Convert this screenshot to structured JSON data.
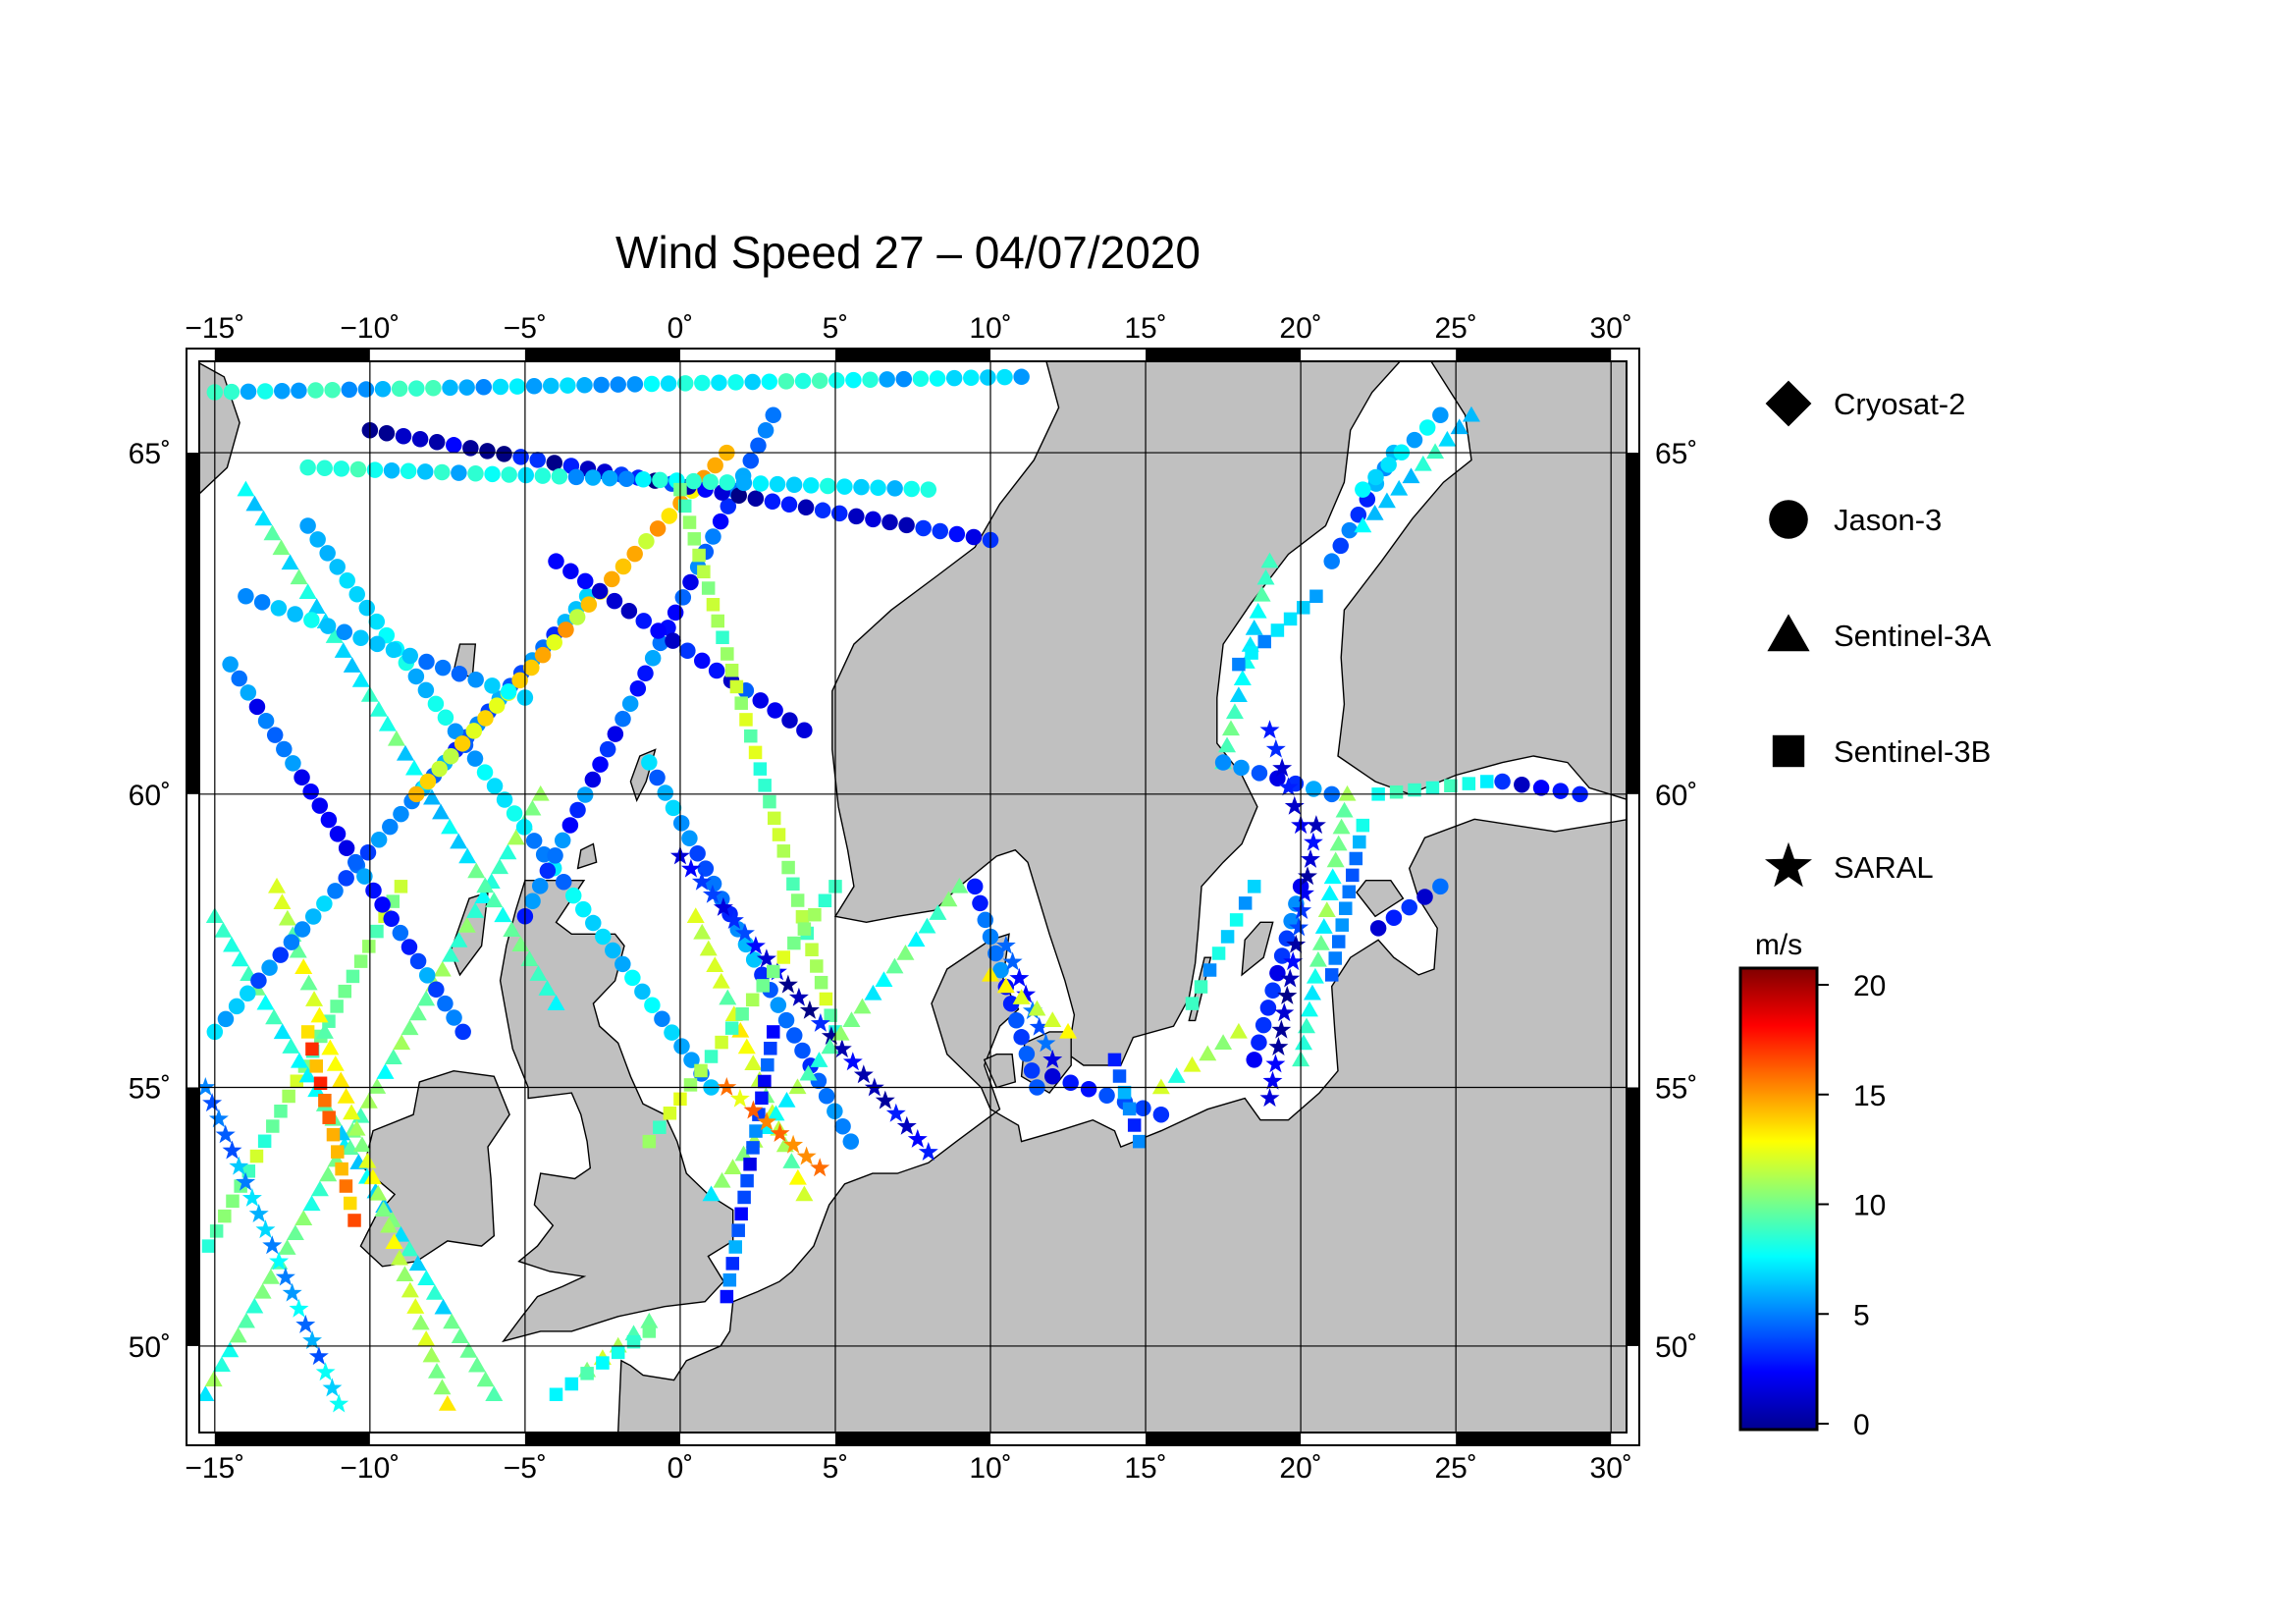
{
  "title": "Wind Speed 27 – 04/07/2020",
  "map": {
    "lon_range": [
      -15.5,
      30.5
    ],
    "lat_range": [
      48.2,
      66.2
    ],
    "lon_ticks": [
      {
        "value": -15,
        "label": "−15˚"
      },
      {
        "value": -10,
        "label": "−10˚"
      },
      {
        "value": -5,
        "label": "−5˚"
      },
      {
        "value": 0,
        "label": "0˚"
      },
      {
        "value": 5,
        "label": "5˚"
      },
      {
        "value": 10,
        "label": "10˚"
      },
      {
        "value": 15,
        "label": "15˚"
      },
      {
        "value": 20,
        "label": "20˚"
      },
      {
        "value": 25,
        "label": "25˚"
      },
      {
        "value": 30,
        "label": "30˚"
      }
    ],
    "lat_ticks": [
      {
        "value": 50,
        "label": "50˚"
      },
      {
        "value": 55,
        "label": "55˚"
      },
      {
        "value": 60,
        "label": "60˚"
      },
      {
        "value": 65,
        "label": "65˚"
      }
    ],
    "land_color": "#c0c0c0",
    "sea_color": "#ffffff"
  },
  "legend": [
    {
      "symbol": "diamond",
      "label": "Cryosat-2"
    },
    {
      "symbol": "circle",
      "label": "Jason-3"
    },
    {
      "symbol": "triangle",
      "label": "Sentinel-3A"
    },
    {
      "symbol": "square",
      "label": "Sentinel-3B"
    },
    {
      "symbol": "star",
      "label": "SARAL"
    }
  ],
  "colorbar": {
    "unit": "m/s",
    "min": 0,
    "max": 20,
    "ticks": [
      {
        "value": 0,
        "label": "0"
      },
      {
        "value": 5,
        "label": "5"
      },
      {
        "value": 10,
        "label": "10"
      },
      {
        "value": 15,
        "label": "15"
      },
      {
        "value": 20,
        "label": "20"
      }
    ],
    "colormap": "jet"
  },
  "tracks": [
    {
      "sat": "Sentinel-3A",
      "from": [
        -15.3,
        49.0
      ],
      "to": [
        -4.5,
        60.0
      ],
      "speed": 9
    },
    {
      "sat": "Sentinel-3B",
      "from": [
        -15.2,
        52.0
      ],
      "to": [
        -9.0,
        58.5
      ],
      "speed": 10
    },
    {
      "sat": "Sentinel-3A",
      "from": [
        -15.0,
        58.0
      ],
      "to": [
        -6.0,
        49.0
      ],
      "speed": 8
    },
    {
      "sat": "SARAL",
      "from": [
        -15.3,
        55.0
      ],
      "to": [
        -11.0,
        48.8
      ],
      "speed": 6
    },
    {
      "sat": "Sentinel-3B",
      "from": [
        -12.0,
        56.0
      ],
      "to": [
        -10.5,
        52.5
      ],
      "speed": 15
    },
    {
      "sat": "Sentinel-3A",
      "from": [
        -13.0,
        58.5
      ],
      "to": [
        -7.5,
        48.8
      ],
      "speed": 11
    },
    {
      "sat": "Jason-3",
      "from": [
        -15.0,
        56.0
      ],
      "to": [
        -3.0,
        63.0
      ],
      "speed": 5
    },
    {
      "sat": "Jason-3",
      "from": [
        -14.5,
        62.0
      ],
      "to": [
        -7.0,
        56.0
      ],
      "speed": 4
    },
    {
      "sat": "Sentinel-3A",
      "from": [
        -14.0,
        64.5
      ],
      "to": [
        -4.0,
        56.5
      ],
      "speed": 8
    },
    {
      "sat": "Jason-3",
      "from": [
        -12.0,
        64.0
      ],
      "to": [
        1.0,
        55.0
      ],
      "speed": 6
    },
    {
      "sat": "Jason-3",
      "from": [
        -5.0,
        58.0
      ],
      "to": [
        3.0,
        65.5
      ],
      "speed": 4
    },
    {
      "sat": "Jason-3",
      "from": [
        -8.5,
        60.0
      ],
      "to": [
        1.5,
        65.0
      ],
      "speed": 13
    },
    {
      "sat": "Jason-3",
      "from": [
        -15.0,
        65.8
      ],
      "to": [
        11.0,
        66.0
      ],
      "speed": 7
    },
    {
      "sat": "Jason-3",
      "from": [
        -10.0,
        65.3
      ],
      "to": [
        10.0,
        63.8
      ],
      "speed": 2
    },
    {
      "sat": "Jason-3",
      "from": [
        -12.0,
        64.8
      ],
      "to": [
        8.0,
        64.5
      ],
      "speed": 7
    },
    {
      "sat": "Jason-3",
      "from": [
        -14.0,
        63.0
      ],
      "to": [
        -5.0,
        61.5
      ],
      "speed": 6
    },
    {
      "sat": "Jason-3",
      "from": [
        -4.0,
        63.5
      ],
      "to": [
        4.0,
        61.0
      ],
      "speed": 3
    },
    {
      "sat": "Sentinel-3B",
      "from": [
        0.0,
        64.5
      ],
      "to": [
        5.0,
        56.0
      ],
      "speed": 10
    },
    {
      "sat": "Sentinel-3A",
      "from": [
        0.5,
        58.0
      ],
      "to": [
        4.0,
        53.0
      ],
      "speed": 11
    },
    {
      "sat": "Jason-3",
      "from": [
        -1.0,
        60.5
      ],
      "to": [
        5.5,
        54.0
      ],
      "speed": 5
    },
    {
      "sat": "SARAL",
      "from": [
        0.0,
        59.0
      ],
      "to": [
        8.0,
        53.8
      ],
      "speed": 2
    },
    {
      "sat": "Sentinel-3A",
      "from": [
        1.0,
        53.0
      ],
      "to": [
        9.0,
        58.5
      ],
      "speed": 9
    },
    {
      "sat": "Sentinel-3B",
      "from": [
        -1.0,
        54.0
      ],
      "to": [
        5.0,
        58.5
      ],
      "speed": 10
    },
    {
      "sat": "Sentinel-3B",
      "from": [
        1.5,
        51.0
      ],
      "to": [
        3.0,
        56.0
      ],
      "speed": 4
    },
    {
      "sat": "SARAL",
      "from": [
        1.5,
        55.0
      ],
      "to": [
        4.5,
        53.5
      ],
      "speed": 14
    },
    {
      "sat": "Sentinel-3A",
      "from": [
        -3.0,
        49.5
      ],
      "to": [
        -1.0,
        50.5
      ],
      "speed": 11
    },
    {
      "sat": "Sentinel-3B",
      "from": [
        -4.0,
        49.0
      ],
      "to": [
        -1.0,
        50.3
      ],
      "speed": 9
    },
    {
      "sat": "Jason-3",
      "from": [
        9.5,
        58.5
      ],
      "to": [
        11.5,
        55.0
      ],
      "speed": 4
    },
    {
      "sat": "SARAL",
      "from": [
        10.5,
        57.5
      ],
      "to": [
        12.0,
        55.5
      ],
      "speed": 3
    },
    {
      "sat": "Sentinel-3A",
      "from": [
        10.0,
        57.0
      ],
      "to": [
        12.5,
        56.0
      ],
      "speed": 11
    },
    {
      "sat": "Jason-3",
      "from": [
        12.0,
        55.2
      ],
      "to": [
        15.5,
        54.5
      ],
      "speed": 3
    },
    {
      "sat": "Sentinel-3B",
      "from": [
        14.0,
        55.5
      ],
      "to": [
        14.8,
        54.0
      ],
      "speed": 5
    },
    {
      "sat": "Sentinel-3A",
      "from": [
        15.5,
        55.0
      ],
      "to": [
        18.0,
        56.0
      ],
      "speed": 10
    },
    {
      "sat": "Sentinel-3B",
      "from": [
        16.5,
        56.5
      ],
      "to": [
        18.5,
        58.5
      ],
      "speed": 7
    },
    {
      "sat": "Jason-3",
      "from": [
        18.5,
        55.5
      ],
      "to": [
        20.0,
        58.5
      ],
      "speed": 4
    },
    {
      "sat": "SARAL",
      "from": [
        19.0,
        54.8
      ],
      "to": [
        20.5,
        59.5
      ],
      "speed": 2
    },
    {
      "sat": "Sentinel-3A",
      "from": [
        20.0,
        55.5
      ],
      "to": [
        21.5,
        60.0
      ],
      "speed": 9
    },
    {
      "sat": "Sentinel-3B",
      "from": [
        21.0,
        57.0
      ],
      "to": [
        22.0,
        59.5
      ],
      "speed": 6
    },
    {
      "sat": "Jason-3",
      "from": [
        22.5,
        57.8
      ],
      "to": [
        24.5,
        58.5
      ],
      "speed": 3
    },
    {
      "sat": "Sentinel-3A",
      "from": [
        17.5,
        60.5
      ],
      "to": [
        19.0,
        63.5
      ],
      "speed": 8
    },
    {
      "sat": "Jason-3",
      "from": [
        17.5,
        60.5
      ],
      "to": [
        21.0,
        60.0
      ],
      "speed": 4
    },
    {
      "sat": "SARAL",
      "from": [
        19.0,
        61.0
      ],
      "to": [
        20.0,
        59.5
      ],
      "speed": 2
    },
    {
      "sat": "Sentinel-3B",
      "from": [
        18.0,
        62.0
      ],
      "to": [
        20.5,
        63.0
      ],
      "speed": 7
    },
    {
      "sat": "Jason-3",
      "from": [
        21.0,
        63.5
      ],
      "to": [
        23.0,
        65.0
      ],
      "speed": 5
    },
    {
      "sat": "Jason-3",
      "from": [
        22.0,
        64.5
      ],
      "to": [
        24.5,
        65.5
      ],
      "speed": 6
    },
    {
      "sat": "Sentinel-3A",
      "from": [
        22.0,
        64.0
      ],
      "to": [
        25.5,
        65.5
      ],
      "speed": 8
    },
    {
      "sat": "Sentinel-3B",
      "from": [
        22.5,
        60.0
      ],
      "to": [
        26.0,
        60.2
      ],
      "speed": 7
    },
    {
      "sat": "Jason-3",
      "from": [
        26.5,
        60.2
      ],
      "to": [
        29.0,
        60.0
      ],
      "speed": 3
    }
  ]
}
